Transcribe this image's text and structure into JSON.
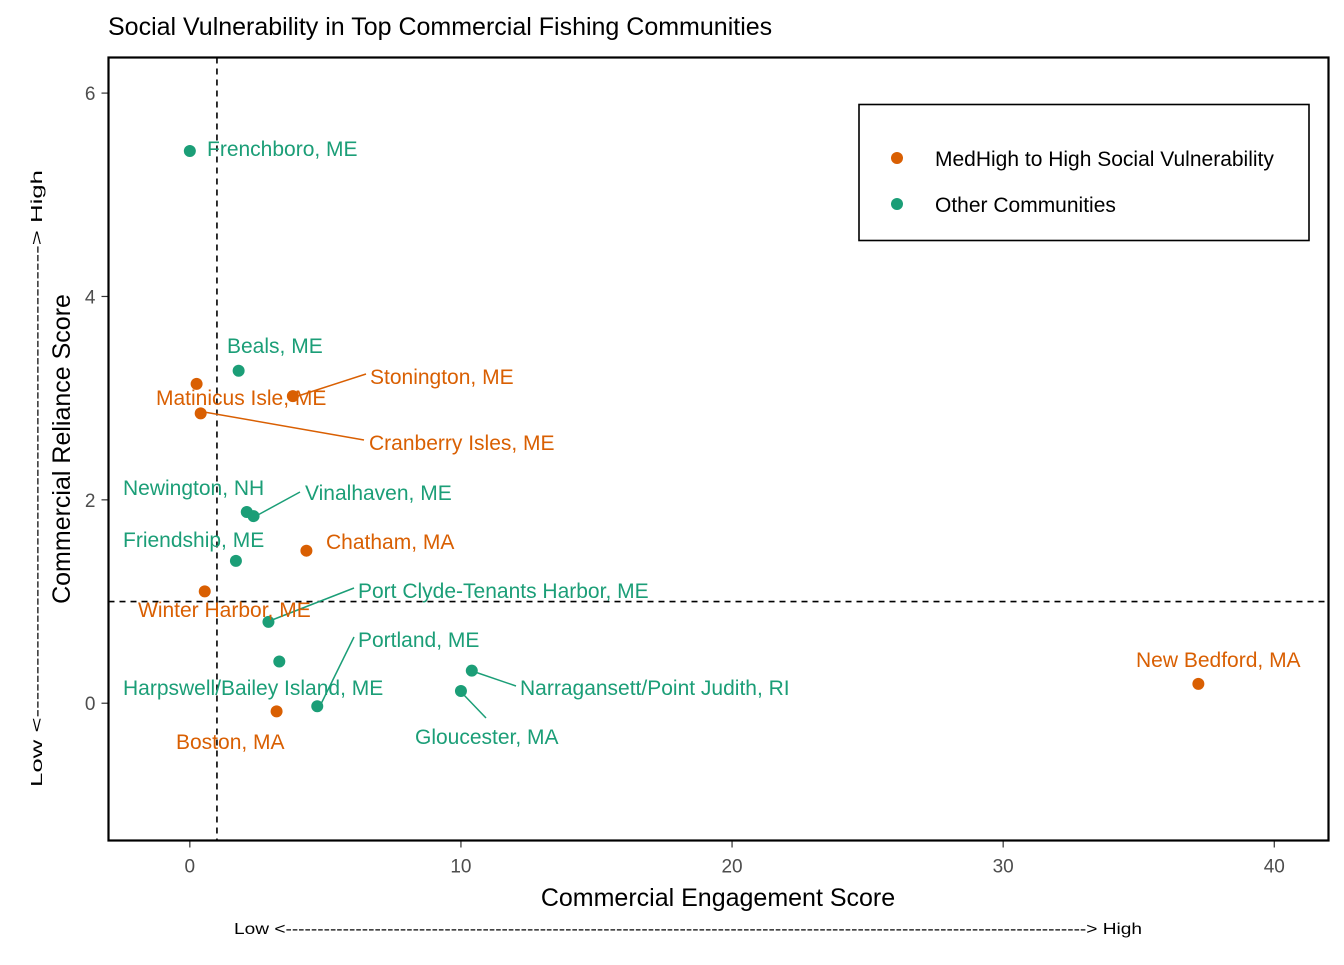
{
  "chart_data": {
    "type": "scatter",
    "title": "Social Vulnerability in Top Commercial Fishing Communities",
    "xlabel": "Commercial Engagement Score",
    "ylabel": "Commercial Reliance Score",
    "x_annotation": "Low <------------------------------------------------------------------------------------------------------------------------------> High",
    "y_annotation": "Low <-------------------------------------------------------> High",
    "xlim": [
      -3,
      42
    ],
    "ylim": [
      -1.35,
      6.35
    ],
    "xticks": [
      0,
      10,
      20,
      30,
      40
    ],
    "yticks": [
      0,
      2,
      4,
      6
    ],
    "reference_lines": {
      "x": 1,
      "y": 1
    },
    "grid": false,
    "legend_position": "top-right",
    "colors": {
      "high": "#d95f02",
      "other": "#1b9e77"
    },
    "series": [
      {
        "name": "MedHigh to High Social Vulnerability",
        "key": "high",
        "points": [
          {
            "label": "Stonington, ME",
            "x": 3.8,
            "y": 3.02
          },
          {
            "label": "Matinicus Isle, ME",
            "x": 0.25,
            "y": 3.14
          },
          {
            "label": "Cranberry Isles, ME",
            "x": 0.4,
            "y": 2.85
          },
          {
            "label": "Chatham, MA",
            "x": 4.3,
            "y": 1.5
          },
          {
            "label": "Winter Harbor, ME",
            "x": 0.55,
            "y": 1.1
          },
          {
            "label": "Boston, MA",
            "x": 3.2,
            "y": -0.08
          },
          {
            "label": "New Bedford, MA",
            "x": 37.2,
            "y": 0.19
          }
        ]
      },
      {
        "name": "Other Communities",
        "key": "other",
        "points": [
          {
            "label": "Frenchboro, ME",
            "x": 0.0,
            "y": 5.43
          },
          {
            "label": "Beals, ME",
            "x": 1.8,
            "y": 3.27
          },
          {
            "label": "Newington, NH",
            "x": 2.1,
            "y": 1.88
          },
          {
            "label": "Vinalhaven, ME",
            "x": 2.35,
            "y": 1.84
          },
          {
            "label": "Friendship, ME",
            "x": 1.7,
            "y": 1.4
          },
          {
            "label": "Port Clyde-Tenants Harbor, ME",
            "x": 2.9,
            "y": 0.8
          },
          {
            "label": "Harpswell/Bailey Island, ME",
            "x": 3.3,
            "y": 0.41
          },
          {
            "label": "Portland, ME",
            "x": 4.7,
            "y": -0.03
          },
          {
            "label": "Narragansett/Point Judith, RI",
            "x": 10.4,
            "y": 0.32
          },
          {
            "label": "Gloucester, MA",
            "x": 10.0,
            "y": 0.12
          }
        ]
      }
    ]
  }
}
